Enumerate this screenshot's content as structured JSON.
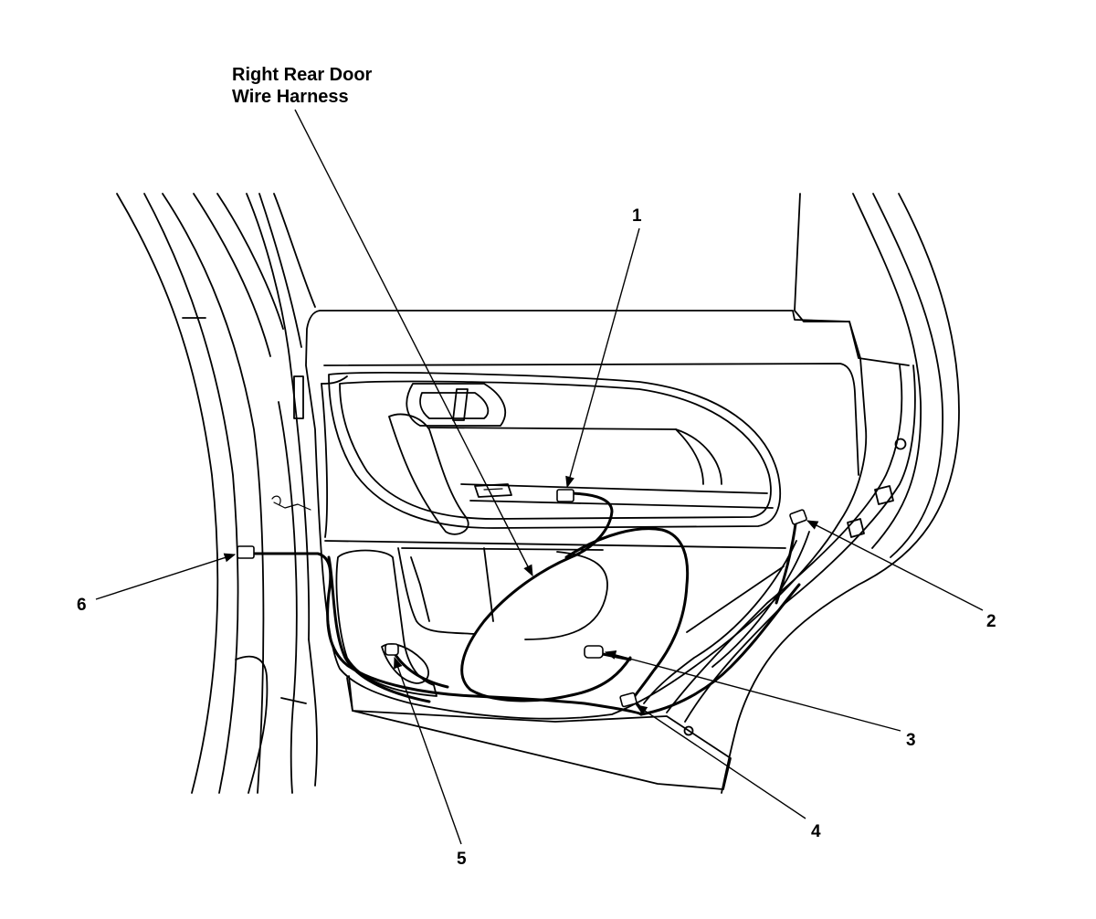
{
  "title": {
    "line1": "Right Rear Door",
    "line2": "Wire Harness"
  },
  "callouts": [
    "1",
    "2",
    "3",
    "4",
    "5",
    "6"
  ]
}
